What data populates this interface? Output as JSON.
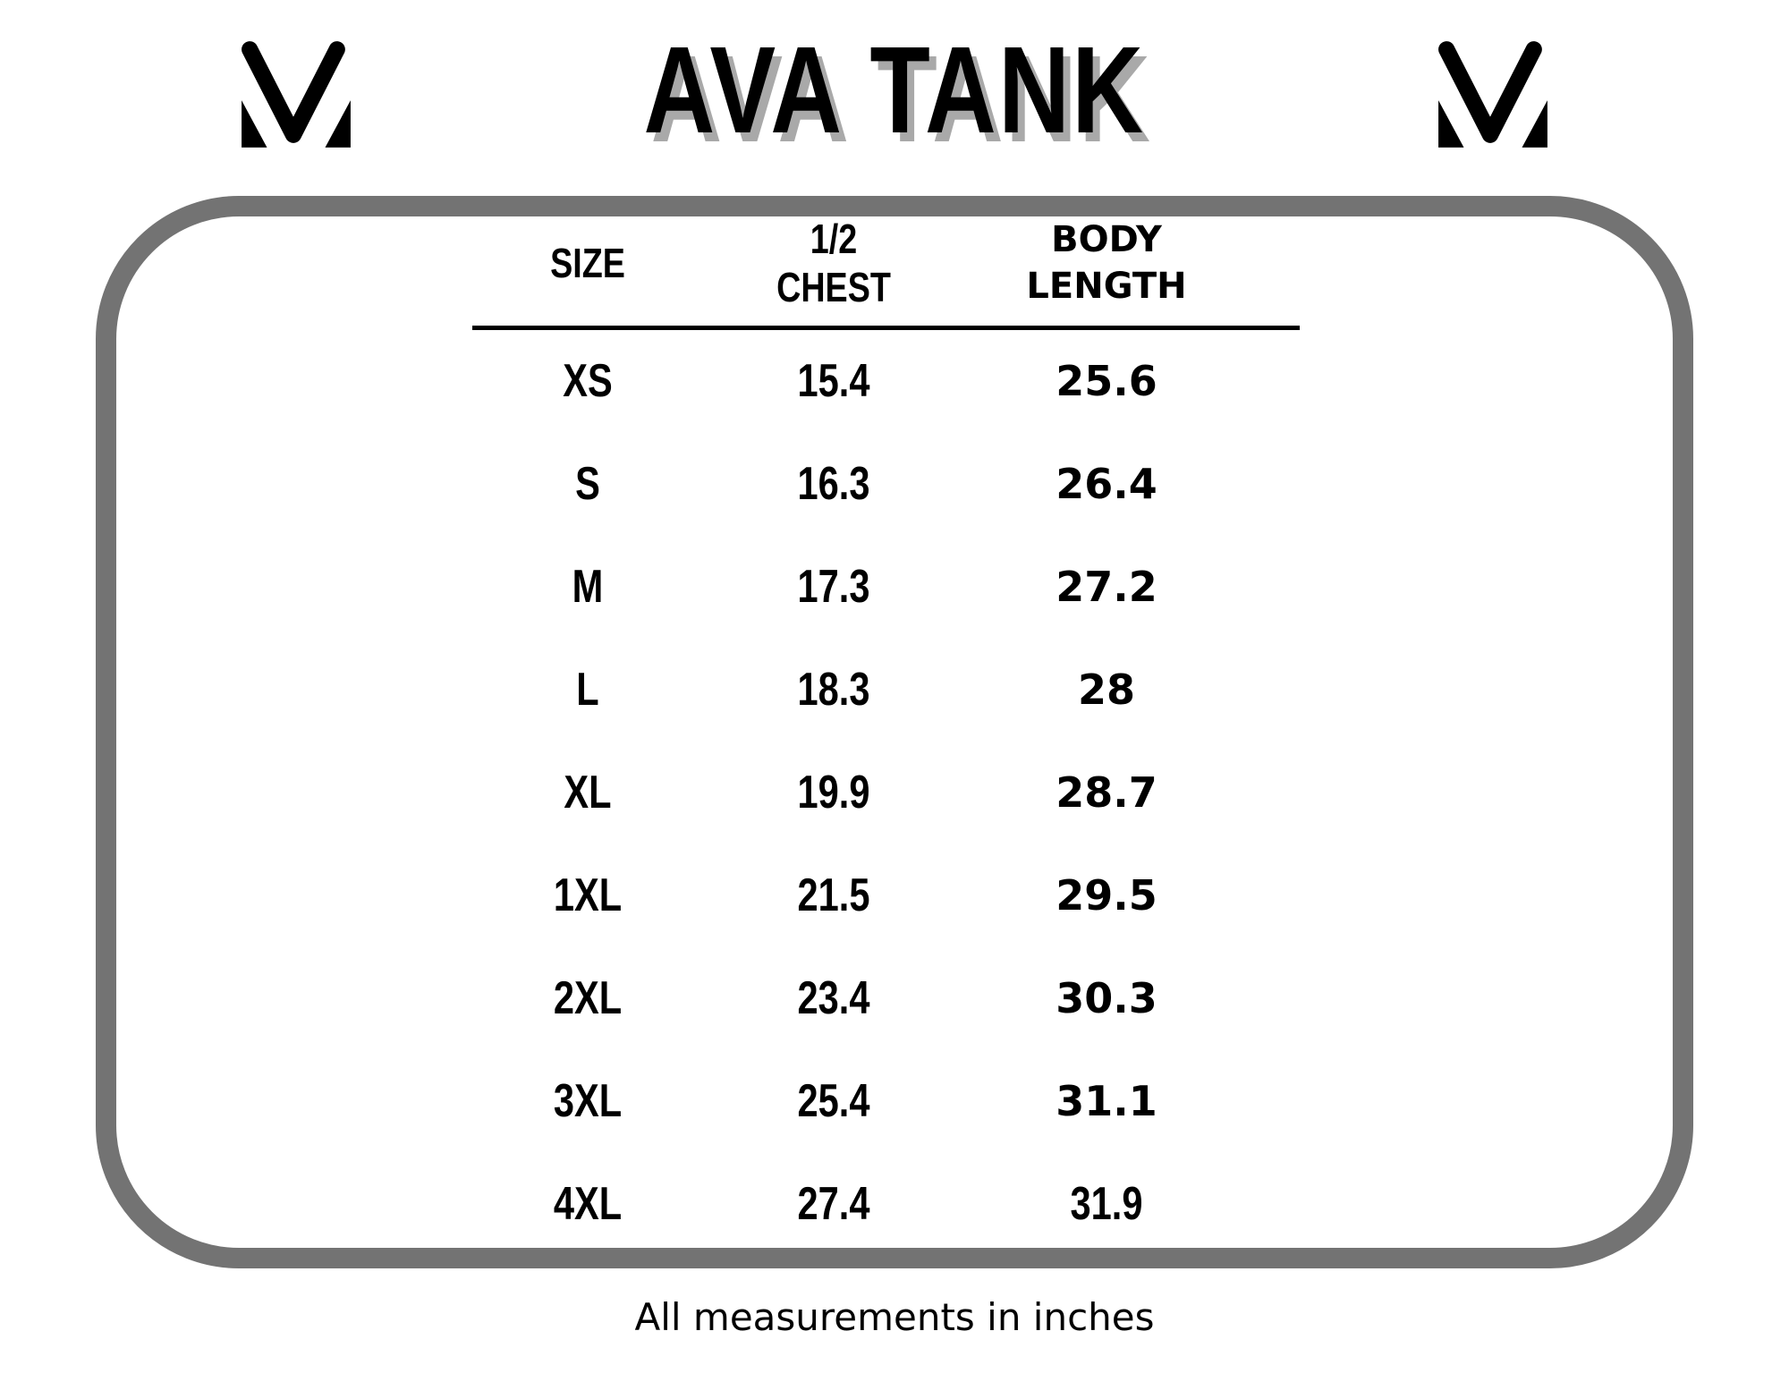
{
  "header": {
    "title": "AVA TANK",
    "logo": "mv-monogram-logo"
  },
  "size_chart": {
    "columns": [
      "SIZE",
      "1/2 CHEST",
      "BODY LENGTH"
    ],
    "rows": [
      {
        "size": "XS",
        "half_chest": "15.4",
        "body_length": "25.6"
      },
      {
        "size": "S",
        "half_chest": "16.3",
        "body_length": "26.4"
      },
      {
        "size": "M",
        "half_chest": "17.3",
        "body_length": "27.2"
      },
      {
        "size": "L",
        "half_chest": "18.3",
        "body_length": "28"
      },
      {
        "size": "XL",
        "half_chest": "19.9",
        "body_length": "28.7"
      },
      {
        "size": "1XL",
        "half_chest": "21.5",
        "body_length": "29.5"
      },
      {
        "size": "2XL",
        "half_chest": "23.4",
        "body_length": "30.3"
      },
      {
        "size": "3XL",
        "half_chest": "25.4",
        "body_length": "31.1"
      },
      {
        "size": "4XL",
        "half_chest": "27.4",
        "body_length": "31.9"
      }
    ],
    "footnote": "All measurements in inches"
  },
  "colors": {
    "frame_border": "#737373",
    "text": "#000000",
    "title_shadow": "#a9a9a9"
  }
}
